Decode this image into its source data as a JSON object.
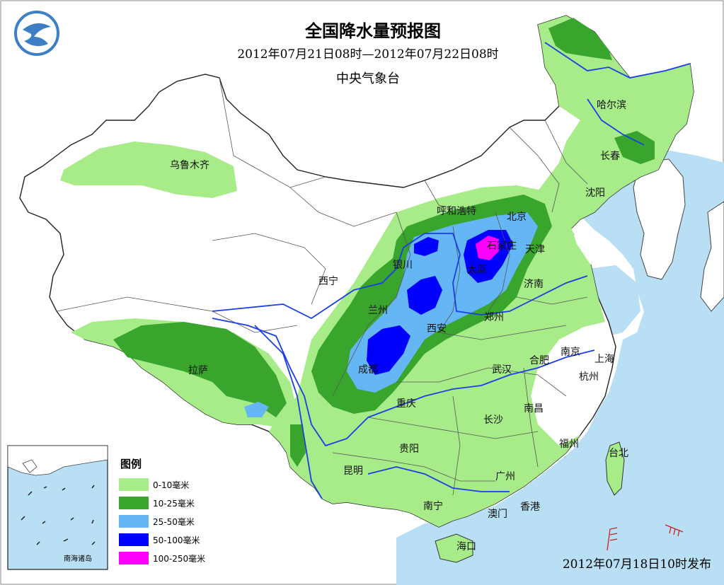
{
  "header": {
    "title": "全国降水量预报图",
    "period": "2012年07月21日08时—2012年07月22日08时",
    "agency": "中央气象台"
  },
  "issue_time": "2012年07月18日10时发布",
  "legend": {
    "title": "图例",
    "items": [
      {
        "label": "0-10毫米",
        "color": "#a8ec8a"
      },
      {
        "label": "10-25毫米",
        "color": "#3aa52c"
      },
      {
        "label": "25-50毫米",
        "color": "#65b6f4"
      },
      {
        "label": "50-100毫米",
        "color": "#0000ff"
      },
      {
        "label": "100-250毫米",
        "color": "#ff00ff"
      }
    ]
  },
  "inset": {
    "label": "南海诸岛"
  },
  "colors": {
    "sea": "#b8dff3",
    "land": "#ffffff",
    "border": "#333333",
    "river": "#1a3ee6"
  },
  "cities": {
    "wulumuqi": "乌鲁木齐",
    "haerbin": "哈尔滨",
    "changchun": "长春",
    "shenyang": "沈阳",
    "huhehaote": "呼和浩特",
    "beijing": "北京",
    "tianjin": "天津",
    "shijiazhuang": "石家庄",
    "taiyuan": "太原",
    "yinchuan": "银川",
    "xining": "西宁",
    "lanzhou": "兰州",
    "jinan": "济南",
    "xian": "西安",
    "zhengzhou": "郑州",
    "lasa": "拉萨",
    "chengdu": "成都",
    "nanjing": "南京",
    "shanghai": "上海",
    "hefei": "合肥",
    "wuhan": "武汉",
    "hangzhou": "杭州",
    "chongqing": "重庆",
    "changsha": "长沙",
    "nanchang": "南昌",
    "fuzhou": "福州",
    "guiyang": "贵阳",
    "taibei": "台北",
    "kunming": "昆明",
    "guangzhou": "广州",
    "nanning": "南宁",
    "aomen": "澳门",
    "xianggang": "香港",
    "haikou": "海口"
  }
}
